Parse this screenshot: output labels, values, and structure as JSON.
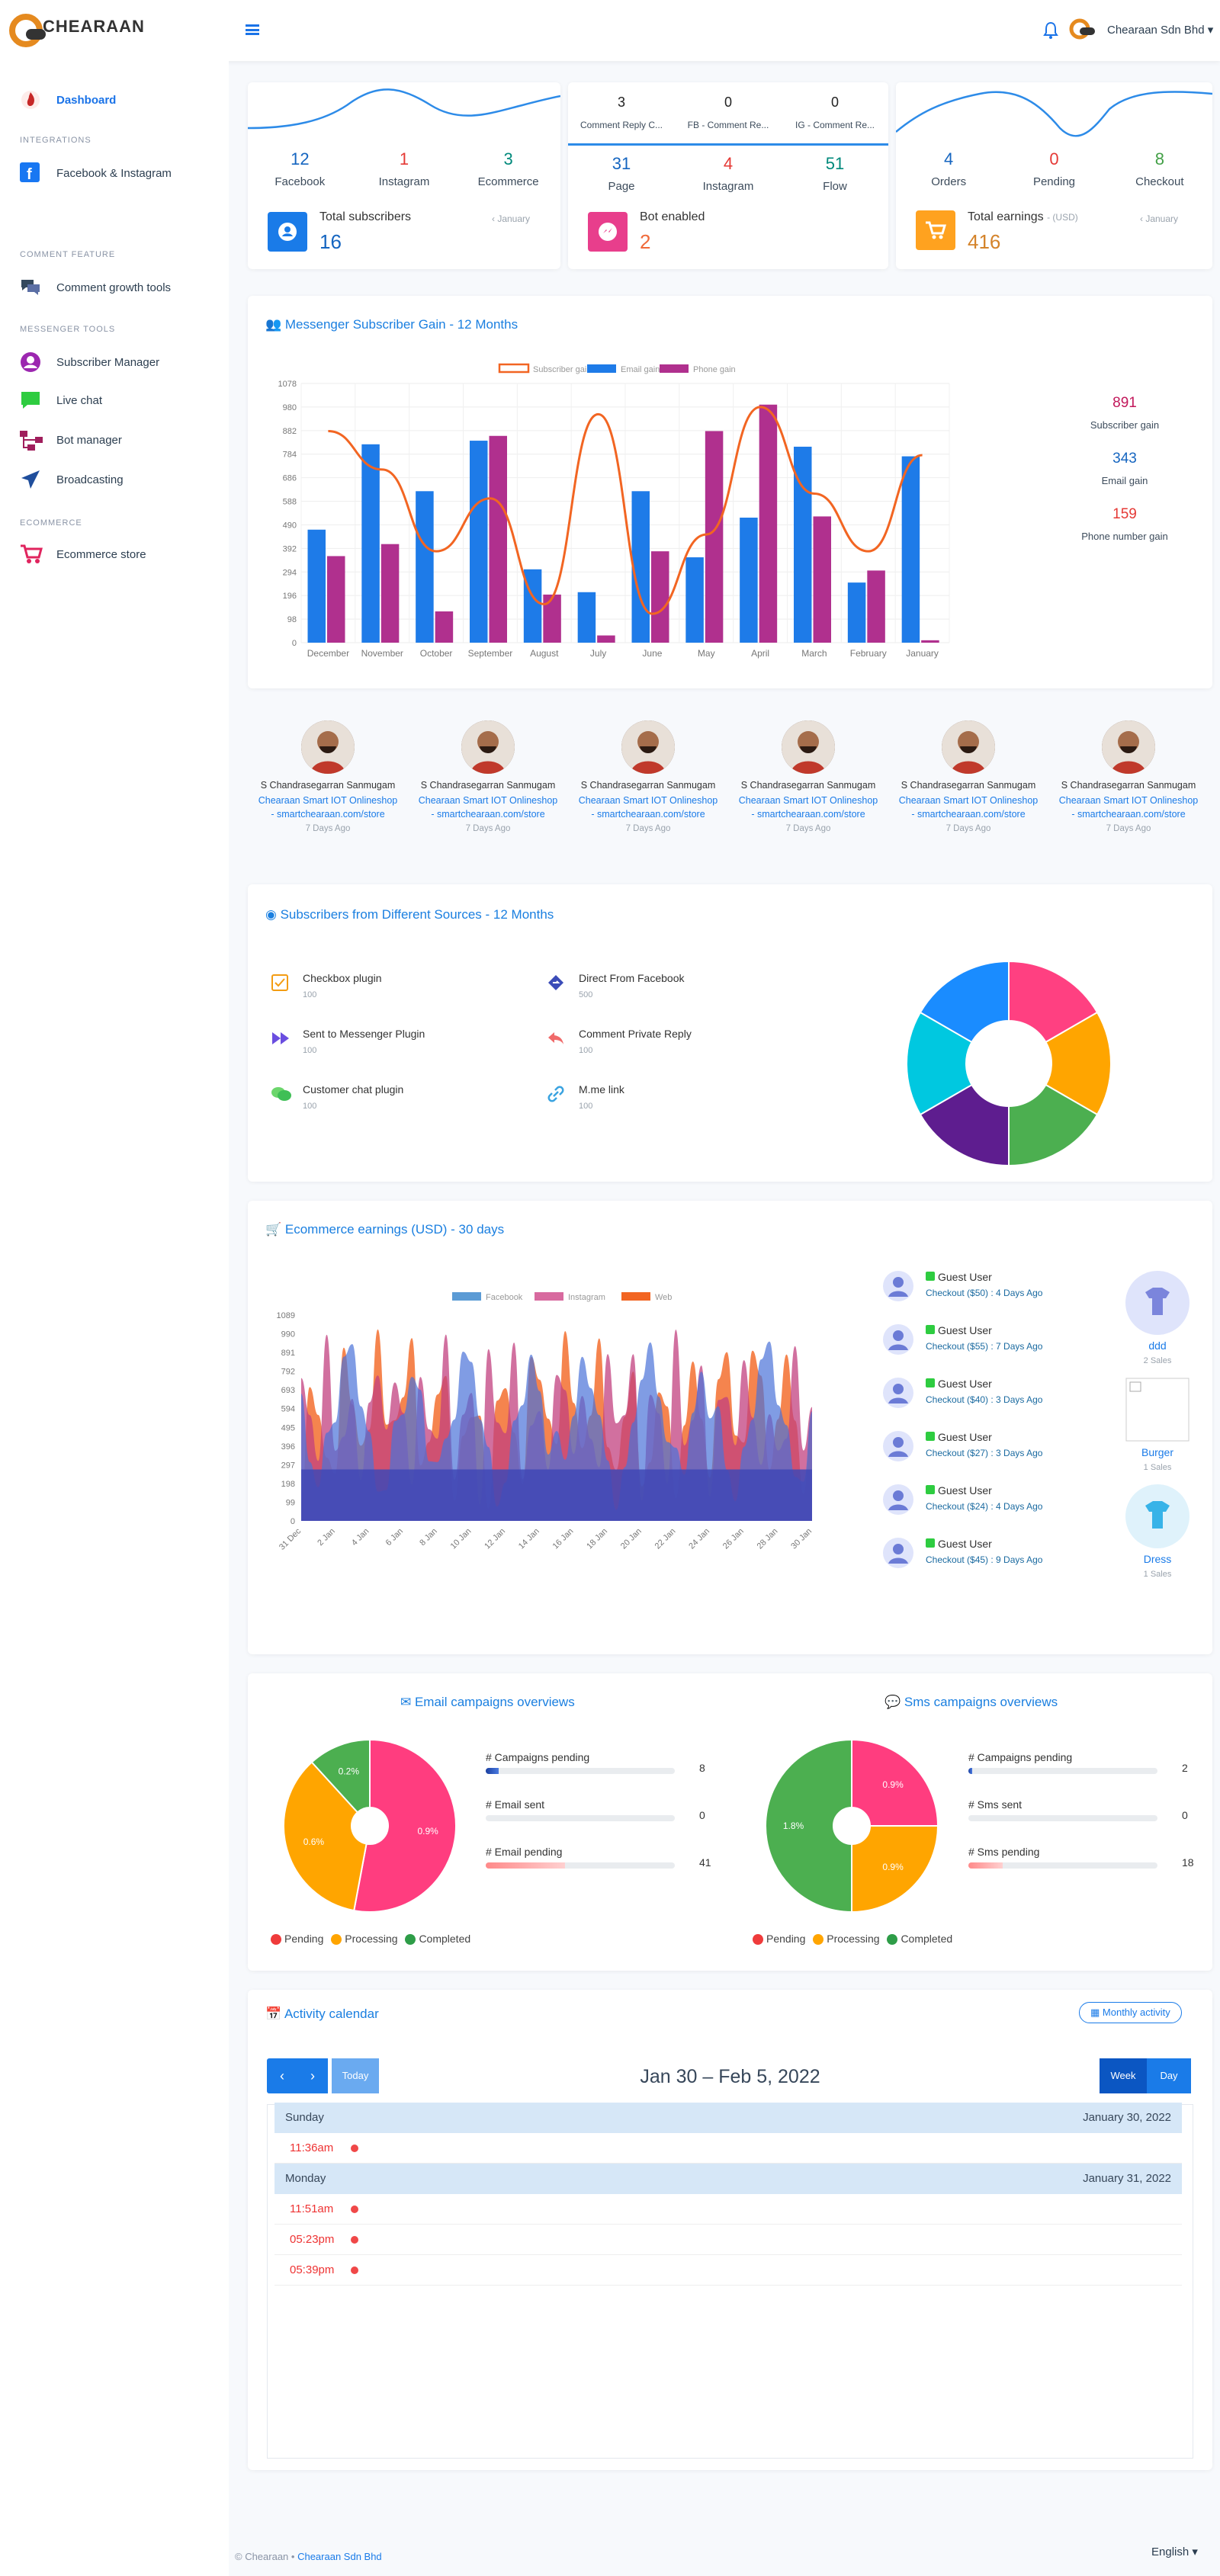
{
  "app": {
    "logo_text": "CHEARAAN",
    "user_name": "Chearaan Sdn Bhd ▾"
  },
  "sidebar": {
    "dashboard": "Dashboard",
    "integrations": "INTEGRATIONS",
    "facebook_instagram": "Facebook & Instagram",
    "comment_feature": "COMMENT FEATURE",
    "comment_growth": "Comment growth tools",
    "messenger_tools": "MESSENGER TOOLS",
    "subscriber_manager": "Subscriber Manager",
    "live_chat": "Live chat",
    "bot_manager": "Bot manager",
    "broadcasting": "Broadcasting",
    "ecommerce": "ECOMMERCE",
    "ecommerce_store": "Ecommerce store"
  },
  "card1": {
    "stats": [
      {
        "value": "12",
        "label": "Facebook",
        "color": "#1565c0"
      },
      {
        "value": "1",
        "label": "Instagram",
        "color": "#e53935"
      },
      {
        "value": "3",
        "label": "Ecommerce",
        "color": "#00897b"
      }
    ],
    "total_label": "Total subscribers",
    "total_value": "16",
    "period": "‹ January"
  },
  "card2": {
    "top": [
      {
        "value": "3",
        "label": "Comment Reply C..."
      },
      {
        "value": "0",
        "label": "FB - Comment Re..."
      },
      {
        "value": "0",
        "label": "IG - Comment Re..."
      }
    ],
    "stats": [
      {
        "value": "31",
        "label": "Page",
        "color": "#1565c0"
      },
      {
        "value": "4",
        "label": "Instagram",
        "color": "#e53935"
      },
      {
        "value": "51",
        "label": "Flow",
        "color": "#00897b"
      }
    ],
    "total_label": "Bot enabled",
    "total_value": "2"
  },
  "card3": {
    "stats": [
      {
        "value": "4",
        "label": "Orders",
        "color": "#1565c0"
      },
      {
        "value": "0",
        "label": "Pending",
        "color": "#e53935"
      },
      {
        "value": "8",
        "label": "Checkout",
        "color": "#43a047"
      }
    ],
    "total_label": "Total earnings",
    "currency": "- (USD)",
    "total_value": "416",
    "period": "‹ January"
  },
  "messenger_chart": {
    "title": "Messenger Subscriber Gain - 12 Months",
    "stats": [
      {
        "value": "891",
        "label": "Subscriber gain",
        "color": "#c2185b"
      },
      {
        "value": "343",
        "label": "Email gain",
        "color": "#1565c0"
      },
      {
        "value": "159",
        "label": "Phone number gain",
        "color": "#e53935"
      }
    ]
  },
  "chart_data": [
    {
      "type": "bar",
      "categories": [
        "December",
        "November",
        "October",
        "September",
        "August",
        "July",
        "June",
        "May",
        "April",
        "March",
        "February",
        "January"
      ],
      "yticks": [
        "0",
        "98",
        "196",
        "294",
        "392",
        "490",
        "588",
        "686",
        "784",
        "882",
        "980",
        "1078"
      ],
      "ylim": [
        0,
        1078
      ],
      "series": [
        {
          "name": "Subscriber gain",
          "type": "line",
          "color": "#f26522",
          "values": [
            880,
            720,
            380,
            600,
            160,
            950,
            120,
            450,
            980,
            620,
            380,
            780
          ]
        },
        {
          "name": "Email gain",
          "color": "#1e7be8",
          "values": [
            470,
            825,
            630,
            840,
            305,
            210,
            630,
            355,
            520,
            815,
            250,
            775
          ]
        },
        {
          "name": "Phone gain",
          "color": "#b0308e",
          "values": [
            360,
            410,
            130,
            860,
            200,
            30,
            380,
            880,
            990,
            525,
            300,
            10
          ]
        }
      ]
    },
    {
      "type": "pie",
      "colors": [
        "#ff4081",
        "#ffa500",
        "#4caf50",
        "#5e1d8f",
        "#00c8e0",
        "#1a8cff"
      ],
      "values": [
        1,
        1,
        1,
        1,
        1,
        1
      ]
    },
    {
      "type": "area",
      "categories": [
        "31 Dec",
        "2 Jan",
        "4 Jan",
        "6 Jan",
        "8 Jan",
        "10 Jan",
        "12 Jan",
        "14 Jan",
        "16 Jan",
        "18 Jan",
        "20 Jan",
        "22 Jan",
        "24 Jan",
        "26 Jan",
        "28 Jan",
        "30 Jan"
      ],
      "yticks": [
        "0",
        "99",
        "198",
        "297",
        "396",
        "495",
        "594",
        "693",
        "792",
        "891",
        "990",
        "1089"
      ],
      "ylim": [
        0,
        1089
      ],
      "series": [
        {
          "name": "Facebook",
          "color": "#5b9bd5"
        },
        {
          "name": "Instagram",
          "color": "#d86a9f"
        },
        {
          "name": "Web",
          "color": "#f26522"
        }
      ]
    },
    {
      "type": "pie",
      "title": "Email campaigns overviews",
      "labels": [
        "0.9%",
        "0.6%",
        "0.2%"
      ],
      "values": [
        0.9,
        0.6,
        0.2
      ],
      "colors": [
        "#ff3d7f",
        "#ffa500",
        "#4caf50"
      ]
    },
    {
      "type": "pie",
      "title": "Sms campaigns overviews",
      "labels": [
        "0.9%",
        "0.9%",
        "1.8%"
      ],
      "values": [
        0.9,
        0.9,
        1.8
      ],
      "colors": [
        "#ff3d7f",
        "#ffa500",
        "#4caf50"
      ]
    }
  ],
  "messenger_legend": [
    "Subscriber gain",
    "Email gain",
    "Phone gain"
  ],
  "subscribers": [
    {
      "name": "S Chandrasegarran Sanmugam",
      "shop": "Chearaan Smart IOT Onlineshop",
      "url": "- smartchearaan.com/store",
      "time": "7 Days Ago"
    },
    {
      "name": "S Chandrasegarran Sanmugam",
      "shop": "Chearaan Smart IOT Onlineshop",
      "url": "- smartchearaan.com/store",
      "time": "7 Days Ago"
    },
    {
      "name": "S Chandrasegarran Sanmugam",
      "shop": "Chearaan Smart IOT Onlineshop",
      "url": "- smartchearaan.com/store",
      "time": "7 Days Ago"
    },
    {
      "name": "S Chandrasegarran Sanmugam",
      "shop": "Chearaan Smart IOT Onlineshop",
      "url": "- smartchearaan.com/store",
      "time": "7 Days Ago"
    },
    {
      "name": "S Chandrasegarran Sanmugam",
      "shop": "Chearaan Smart IOT Onlineshop",
      "url": "- smartchearaan.com/store",
      "time": "7 Days Ago"
    },
    {
      "name": "S Chandrasegarran Sanmugam",
      "shop": "Chearaan Smart IOT Onlineshop",
      "url": "- smartchearaan.com/store",
      "time": "7 Days Ago"
    }
  ],
  "sources": {
    "title": "Subscribers from Different Sources - 12 Months",
    "items": [
      {
        "label": "Checkbox plugin",
        "value": "100"
      },
      {
        "label": "Direct From Facebook",
        "value": "500"
      },
      {
        "label": "Sent to Messenger Plugin",
        "value": "100"
      },
      {
        "label": "Comment Private Reply",
        "value": "100"
      },
      {
        "label": "Customer chat plugin",
        "value": "100"
      },
      {
        "label": "M.me link",
        "value": "100"
      }
    ]
  },
  "ecom": {
    "title": "Ecommerce earnings (USD) - 30 days",
    "orders": [
      {
        "name": "Guest User",
        "detail": "Checkout ($50) : 4 Days Ago"
      },
      {
        "name": "Guest User",
        "detail": "Checkout ($55) : 7 Days Ago"
      },
      {
        "name": "Guest User",
        "detail": "Checkout ($40) : 3 Days Ago"
      },
      {
        "name": "Guest User",
        "detail": "Checkout ($27) : 3 Days Ago"
      },
      {
        "name": "Guest User",
        "detail": "Checkout ($24) : 4 Days Ago"
      },
      {
        "name": "Guest User",
        "detail": "Checkout ($45) : 9 Days Ago"
      }
    ],
    "products": [
      {
        "name": "ddd",
        "sales": "2 Sales"
      },
      {
        "name": "Burger",
        "sales": "1 Sales"
      },
      {
        "name": "Dress",
        "sales": "1 Sales"
      }
    ]
  },
  "email_stats": [
    {
      "label": "# Campaigns pending",
      "value": "8",
      "pct": 0.07,
      "color": "#1a3fa0"
    },
    {
      "label": "# Email sent",
      "value": "0",
      "pct": 0,
      "color": "#1a3fa0"
    },
    {
      "label": "# Email pending",
      "value": "41",
      "pct": 0.42,
      "color": "#ff8a8a"
    }
  ],
  "sms_stats": [
    {
      "label": "# Campaigns pending",
      "value": "2",
      "pct": 0.02,
      "color": "#1a3fa0"
    },
    {
      "label": "# Sms sent",
      "value": "0",
      "pct": 0,
      "color": "#1a3fa0"
    },
    {
      "label": "# Sms pending",
      "value": "18",
      "pct": 0.18,
      "color": "#ff8a8a"
    }
  ],
  "pie_legend": {
    "pending": "Pending",
    "processing": "Processing",
    "completed": "Completed"
  },
  "calendar": {
    "title": "Activity calendar",
    "monthly": "Monthly activity",
    "today": "Today",
    "range": "Jan 30 – Feb 5, 2022",
    "week": "Week",
    "day": "Day",
    "days": [
      {
        "name": "Sunday",
        "date": "January 30, 2022",
        "times": [
          "11:36am"
        ]
      },
      {
        "name": "Monday",
        "date": "January 31, 2022",
        "times": [
          "11:51am",
          "05:23pm",
          "05:39pm"
        ]
      }
    ]
  },
  "footer": {
    "copyright": "© Chearaan  •",
    "company": "Chearaan Sdn Bhd",
    "language": "English ▾"
  }
}
